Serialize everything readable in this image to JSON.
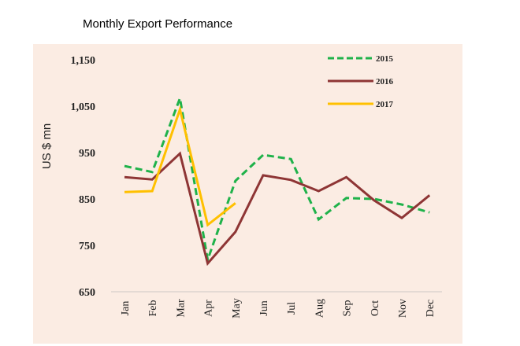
{
  "chart_data": {
    "type": "line",
    "title": "Monthly Export Performance",
    "xlabel": "",
    "ylabel": "US $ mn",
    "categories": [
      "Jan",
      "Feb",
      "Mar",
      "Apr",
      "May",
      "Jun",
      "Jul",
      "Aug",
      "Sep",
      "Oct",
      "Nov",
      "Dec"
    ],
    "yticks": [
      650,
      750,
      850,
      950,
      1050,
      1150
    ],
    "ytick_labels": [
      "650",
      "750",
      "850",
      "950",
      "1,050",
      "1,150"
    ],
    "ylim": [
      650,
      1150
    ],
    "grid": false,
    "legend_position": "top-right",
    "series": [
      {
        "name": "2015",
        "color": "#1fb24a",
        "style": "dashed",
        "values": [
          921,
          908,
          1067,
          719,
          889,
          945,
          936,
          806,
          852,
          850,
          838,
          821
        ]
      },
      {
        "name": "2016",
        "color": "#8e3535",
        "style": "solid",
        "values": [
          897,
          892,
          948,
          711,
          779,
          901,
          891,
          867,
          897,
          847,
          809,
          858
        ]
      },
      {
        "name": "2017",
        "color": "#ffc000",
        "style": "solid",
        "values": [
          865,
          867,
          1043,
          794,
          841
        ]
      }
    ]
  }
}
